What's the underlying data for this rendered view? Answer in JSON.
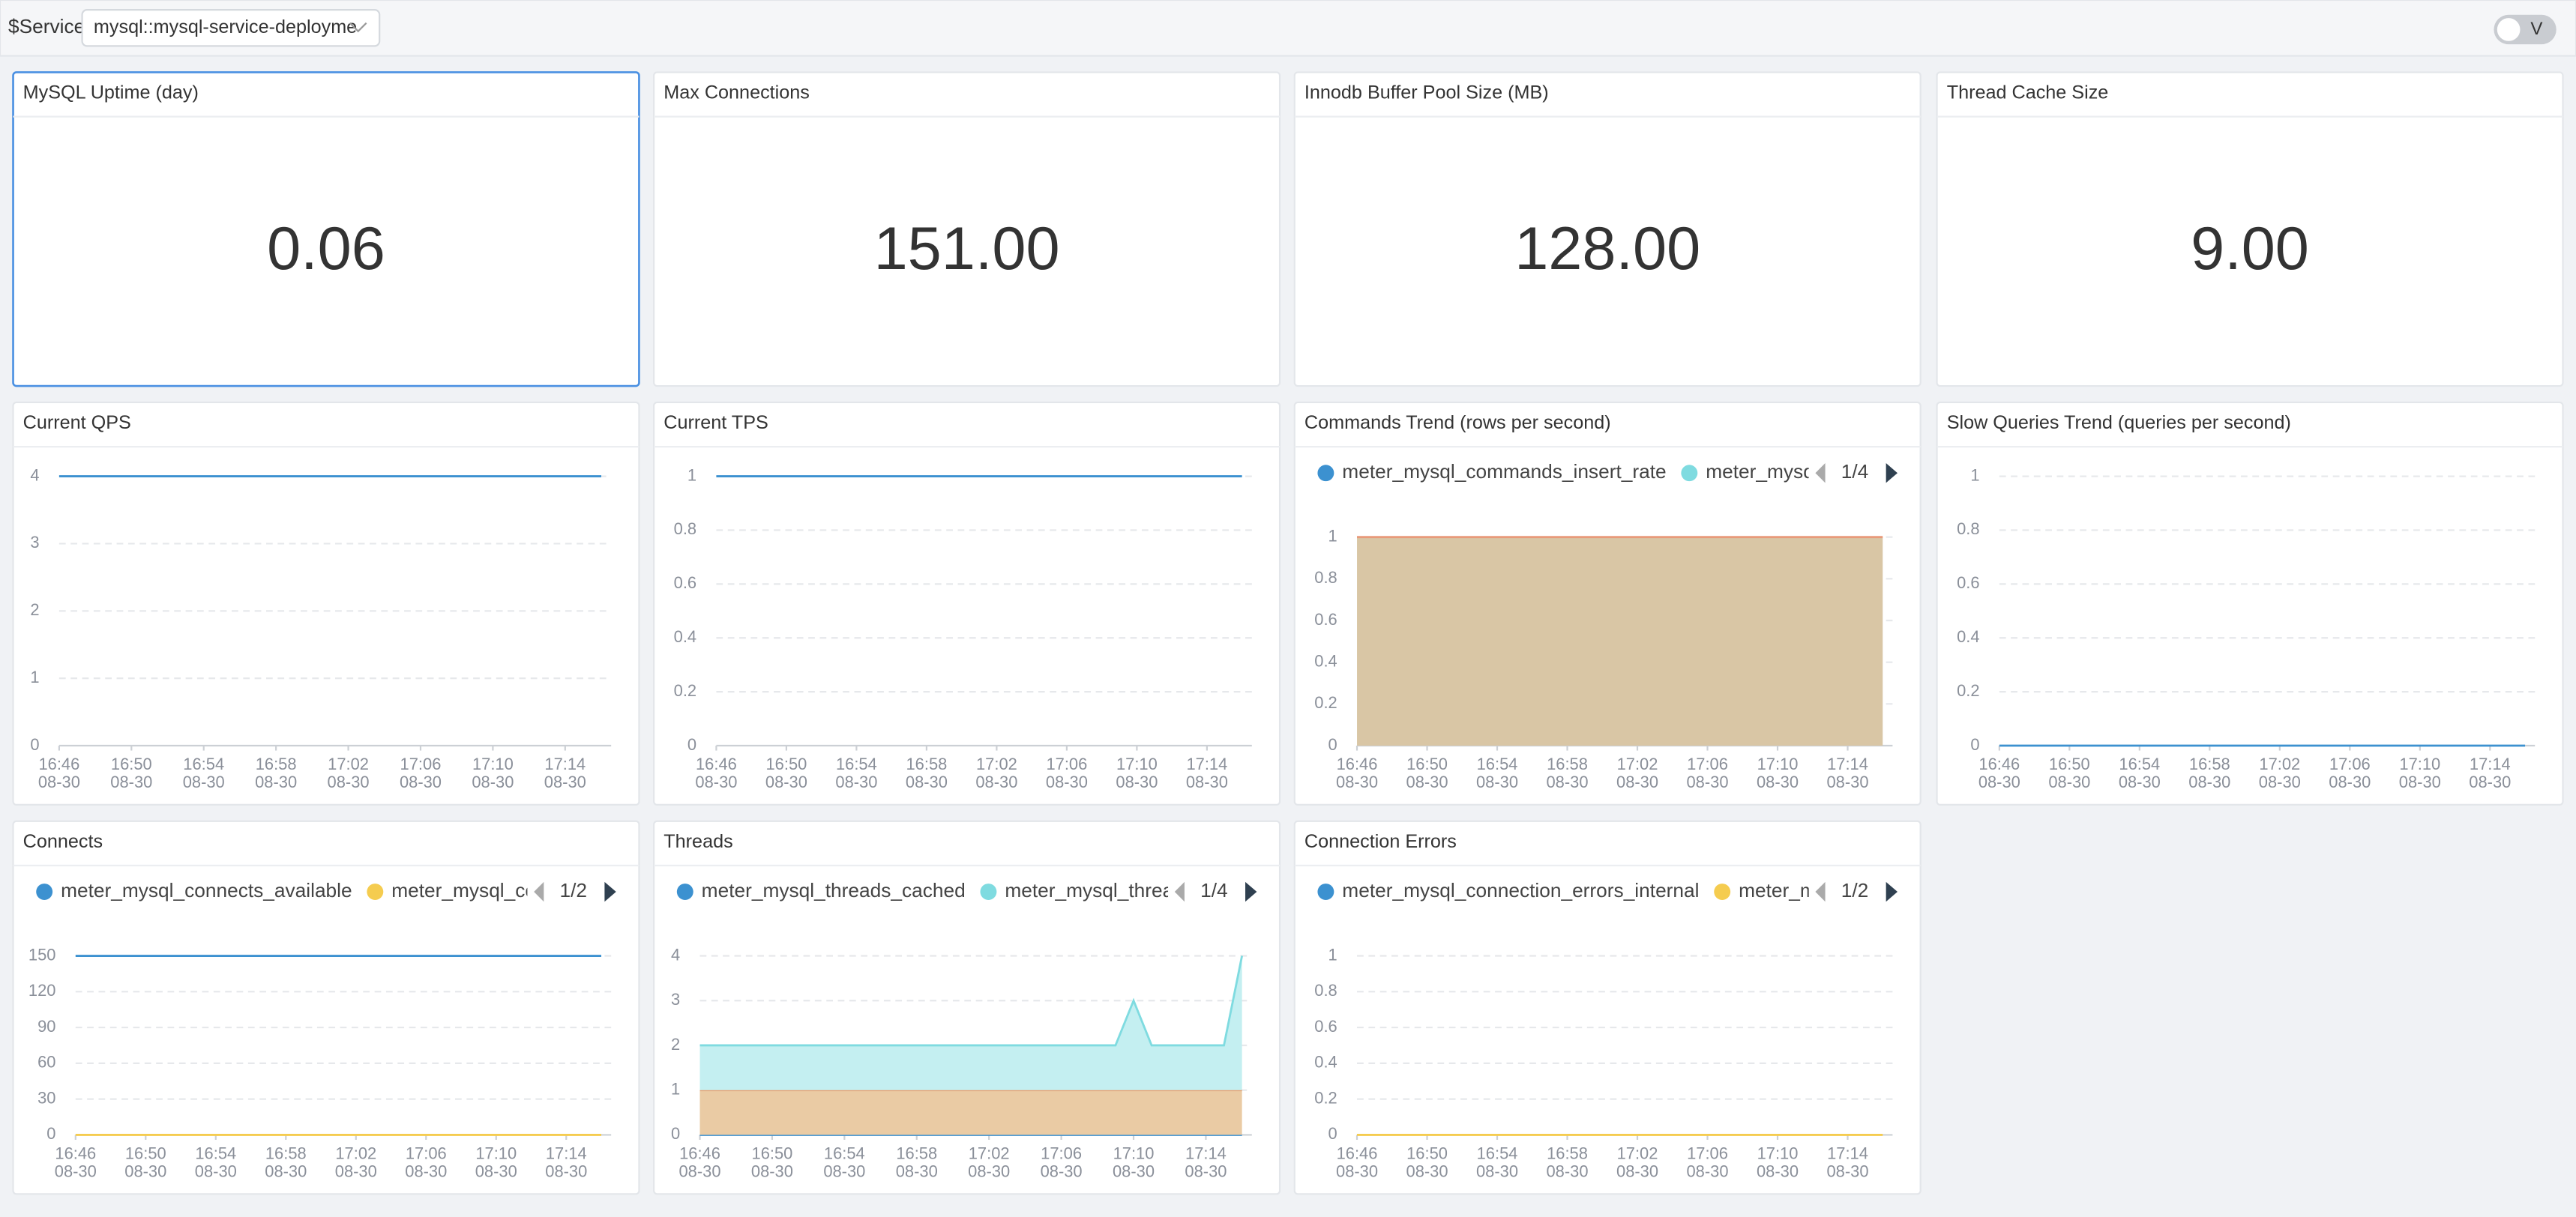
{
  "header": {
    "variable_label": "$Service",
    "variable_value": "mysql::mysql-service-deployme",
    "toggle_label": "V"
  },
  "stats": [
    {
      "title": "MySQL Uptime (day)",
      "value": "0.06",
      "selected": true
    },
    {
      "title": "Max Connections",
      "value": "151.00"
    },
    {
      "title": "Innodb Buffer Pool Size (MB)",
      "value": "128.00"
    },
    {
      "title": "Thread Cache Size",
      "value": "9.00"
    }
  ],
  "charts": [
    {
      "type": "line",
      "title": "Current QPS",
      "x": [
        "16:46",
        "17:09",
        "17:10",
        "17:11",
        "17:15",
        "17:16"
      ],
      "xticks": [
        {
          "time": "16:46",
          "date": "08-30"
        },
        {
          "time": "16:50",
          "date": "08-30"
        },
        {
          "time": "16:54",
          "date": "08-30"
        },
        {
          "time": "16:58",
          "date": "08-30"
        },
        {
          "time": "17:02",
          "date": "08-30"
        },
        {
          "time": "17:06",
          "date": "08-30"
        },
        {
          "time": "17:10",
          "date": "08-30"
        },
        {
          "time": "17:14",
          "date": "08-30"
        }
      ],
      "ylim": [
        0,
        4
      ],
      "yticks": [
        0,
        1,
        2,
        3,
        4
      ],
      "series": [
        {
          "color": "#3c91d0",
          "values": [
            4,
            4,
            4,
            4,
            4,
            4
          ]
        }
      ]
    },
    {
      "type": "line",
      "title": "Current TPS",
      "x": [
        "16:46",
        "17:09",
        "17:10",
        "17:11",
        "17:15",
        "17:16"
      ],
      "xticks": [
        {
          "time": "16:46",
          "date": "08-30"
        },
        {
          "time": "16:50",
          "date": "08-30"
        },
        {
          "time": "16:54",
          "date": "08-30"
        },
        {
          "time": "16:58",
          "date": "08-30"
        },
        {
          "time": "17:02",
          "date": "08-30"
        },
        {
          "time": "17:06",
          "date": "08-30"
        },
        {
          "time": "17:10",
          "date": "08-30"
        },
        {
          "time": "17:14",
          "date": "08-30"
        }
      ],
      "ylim": [
        0,
        1
      ],
      "yticks": [
        0,
        0.2,
        0.4,
        0.6,
        0.8,
        1
      ],
      "series": [
        {
          "color": "#3c91d0",
          "values": [
            1,
            1,
            1,
            1,
            1,
            1
          ]
        }
      ]
    },
    {
      "type": "area",
      "title": "Commands Trend (rows per second)",
      "x": [
        "16:46",
        "17:09",
        "17:10",
        "17:11",
        "17:15",
        "17:16"
      ],
      "xticks": [
        {
          "time": "16:46",
          "date": "08-30"
        },
        {
          "time": "16:50",
          "date": "08-30"
        },
        {
          "time": "16:54",
          "date": "08-30"
        },
        {
          "time": "16:58",
          "date": "08-30"
        },
        {
          "time": "17:02",
          "date": "08-30"
        },
        {
          "time": "17:06",
          "date": "08-30"
        },
        {
          "time": "17:10",
          "date": "08-30"
        },
        {
          "time": "17:14",
          "date": "08-30"
        }
      ],
      "ylim": [
        0,
        1
      ],
      "yticks": [
        0,
        0.2,
        0.4,
        0.6,
        0.8,
        1
      ],
      "legend_page": "1/4",
      "series": [
        {
          "name": "meter_mysql_commands_insert_rate",
          "color": "#3c91d0"
        },
        {
          "name": "meter_mysql_",
          "color": "#7fdbe0"
        },
        {
          "color": "#e89a7a",
          "fill": "#d9c6a5",
          "values": [
            1,
            1,
            1,
            1,
            1,
            1
          ]
        }
      ]
    },
    {
      "type": "line",
      "title": "Slow Queries Trend (queries per second)",
      "x": [
        "16:46",
        "17:09",
        "17:10",
        "17:11",
        "17:15",
        "17:16"
      ],
      "xticks": [
        {
          "time": "16:46",
          "date": "08-30"
        },
        {
          "time": "16:50",
          "date": "08-30"
        },
        {
          "time": "16:54",
          "date": "08-30"
        },
        {
          "time": "16:58",
          "date": "08-30"
        },
        {
          "time": "17:02",
          "date": "08-30"
        },
        {
          "time": "17:06",
          "date": "08-30"
        },
        {
          "time": "17:10",
          "date": "08-30"
        },
        {
          "time": "17:14",
          "date": "08-30"
        }
      ],
      "ylim": [
        0,
        1
      ],
      "yticks": [
        0,
        0.2,
        0.4,
        0.6,
        0.8,
        1
      ],
      "series": [
        {
          "color": "#3c91d0",
          "values": [
            0,
            0,
            0,
            0,
            0,
            0
          ]
        }
      ]
    },
    {
      "type": "line",
      "title": "Connects",
      "x": [
        "16:46",
        "17:09",
        "17:10",
        "17:11",
        "17:15",
        "17:16"
      ],
      "xticks": [
        {
          "time": "16:46",
          "date": "08-30"
        },
        {
          "time": "16:50",
          "date": "08-30"
        },
        {
          "time": "16:54",
          "date": "08-30"
        },
        {
          "time": "16:58",
          "date": "08-30"
        },
        {
          "time": "17:02",
          "date": "08-30"
        },
        {
          "time": "17:06",
          "date": "08-30"
        },
        {
          "time": "17:10",
          "date": "08-30"
        },
        {
          "time": "17:14",
          "date": "08-30"
        }
      ],
      "ylim": [
        0,
        150
      ],
      "yticks": [
        0,
        30,
        60,
        90,
        120,
        150
      ],
      "legend_page": "1/2",
      "series": [
        {
          "name": "meter_mysql_connects_available",
          "color": "#3c91d0",
          "values": [
            150,
            150,
            150,
            150,
            150,
            150
          ]
        },
        {
          "name": "meter_mysql_cor",
          "color": "#f5cc4f",
          "values": [
            0,
            0,
            0,
            0,
            0,
            0
          ]
        }
      ]
    },
    {
      "type": "area",
      "title": "Threads",
      "x": [
        "16:46",
        "17:09",
        "17:10",
        "17:11",
        "17:15",
        "17:16"
      ],
      "xticks": [
        {
          "time": "16:46",
          "date": "08-30"
        },
        {
          "time": "16:50",
          "date": "08-30"
        },
        {
          "time": "16:54",
          "date": "08-30"
        },
        {
          "time": "16:58",
          "date": "08-30"
        },
        {
          "time": "17:02",
          "date": "08-30"
        },
        {
          "time": "17:06",
          "date": "08-30"
        },
        {
          "time": "17:10",
          "date": "08-30"
        },
        {
          "time": "17:14",
          "date": "08-30"
        }
      ],
      "ylim": [
        0,
        4
      ],
      "yticks": [
        0,
        1,
        2,
        3,
        4
      ],
      "legend_page": "1/4",
      "stacked": true,
      "series": [
        {
          "name": "meter_mysql_threads_cached",
          "color": "#3c91d0",
          "values": [
            0,
            0,
            0,
            0,
            0,
            0
          ]
        },
        {
          "color": "#e8a070",
          "fill": "#eacba4",
          "values": [
            1,
            1,
            1,
            1,
            1,
            1
          ]
        },
        {
          "name": "meter_mysql_thread",
          "color": "#7fdbe0",
          "fill": "#c4eff1",
          "values": [
            1,
            1,
            2,
            1,
            1,
            3
          ]
        }
      ]
    },
    {
      "type": "line",
      "title": "Connection Errors",
      "x": [
        "16:46",
        "17:09",
        "17:10",
        "17:11",
        "17:15",
        "17:16"
      ],
      "xticks": [
        {
          "time": "16:46",
          "date": "08-30"
        },
        {
          "time": "16:50",
          "date": "08-30"
        },
        {
          "time": "16:54",
          "date": "08-30"
        },
        {
          "time": "16:58",
          "date": "08-30"
        },
        {
          "time": "17:02",
          "date": "08-30"
        },
        {
          "time": "17:06",
          "date": "08-30"
        },
        {
          "time": "17:10",
          "date": "08-30"
        },
        {
          "time": "17:14",
          "date": "08-30"
        }
      ],
      "ylim": [
        0,
        1
      ],
      "yticks": [
        0,
        0.2,
        0.4,
        0.6,
        0.8,
        1
      ],
      "legend_page": "1/2",
      "series": [
        {
          "name": "meter_mysql_connection_errors_internal",
          "color": "#3c91d0"
        },
        {
          "name": "meter_my",
          "color": "#f5cc4f",
          "values": [
            0,
            0,
            0,
            0,
            0,
            0
          ]
        }
      ]
    }
  ]
}
